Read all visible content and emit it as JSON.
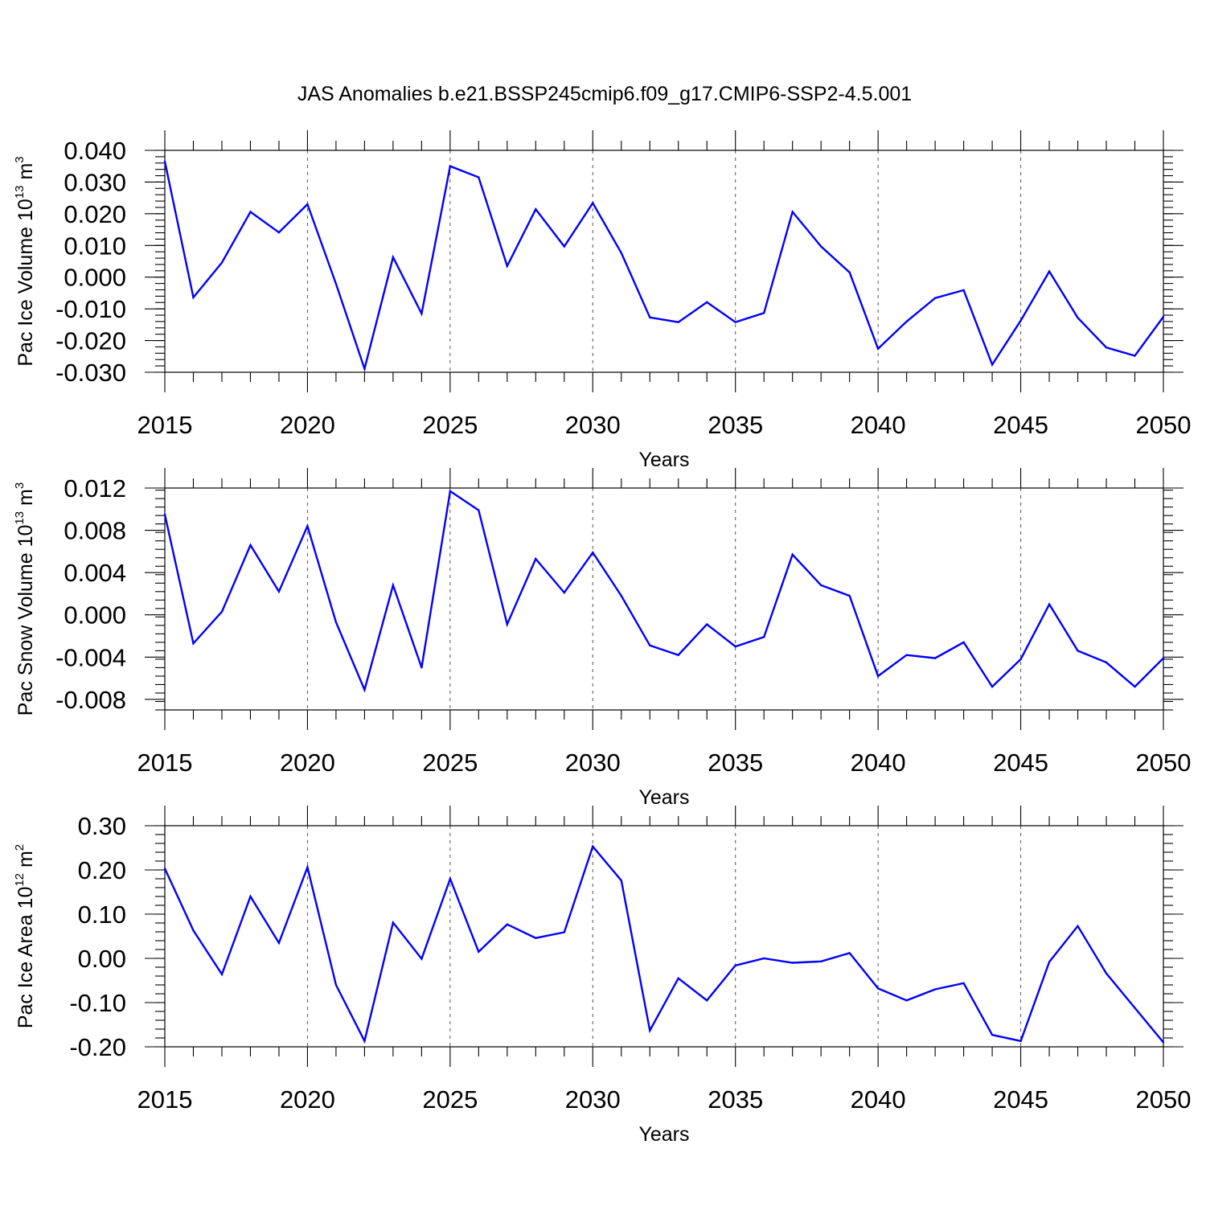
{
  "title": "JAS Anomalies b.e21.BSSP245cmip6.f09_g17.CMIP6-SSP2-4.5.001",
  "line_color": "#0000ff",
  "chart_data": [
    {
      "type": "line",
      "ylabel": {
        "text": "Pac Ice Volume 10",
        "exponent": "13",
        "unit": " m",
        "unit_exponent": "3"
      },
      "xlabel": "Years",
      "xlim": [
        2015,
        2050
      ],
      "ylim": [
        -0.03,
        0.04
      ],
      "x_ticks": [
        2015,
        2020,
        2025,
        2030,
        2035,
        2040,
        2045,
        2050
      ],
      "y_ticks": [
        {
          "value": 0.04,
          "label": "0.040"
        },
        {
          "value": 0.03,
          "label": "0.030"
        },
        {
          "value": 0.02,
          "label": "0.020"
        },
        {
          "value": 0.01,
          "label": "0.010"
        },
        {
          "value": 0.0,
          "label": "0.000"
        },
        {
          "value": -0.01,
          "label": "-0.010"
        },
        {
          "value": -0.02,
          "label": "-0.020"
        },
        {
          "value": -0.03,
          "label": "-0.030"
        }
      ],
      "y_minor_step": 0.002,
      "x": [
        2015,
        2016,
        2017,
        2018,
        2019,
        2020,
        2021,
        2022,
        2023,
        2024,
        2025,
        2026,
        2027,
        2028,
        2029,
        2030,
        2031,
        2032,
        2033,
        2034,
        2035,
        2036,
        2037,
        2038,
        2039,
        2040,
        2041,
        2042,
        2043,
        2044,
        2045,
        2046,
        2047,
        2048,
        2049,
        2050
      ],
      "values": [
        0.0365,
        -0.0064,
        0.0046,
        0.0206,
        0.0141,
        0.023,
        -0.0021,
        -0.0289,
        0.0063,
        -0.0115,
        0.035,
        0.0315,
        0.0035,
        0.0214,
        0.0097,
        0.0234,
        0.0076,
        -0.0127,
        -0.0142,
        -0.0079,
        -0.0142,
        -0.0113,
        0.0206,
        0.0097,
        0.0015,
        -0.0226,
        -0.014,
        -0.0066,
        -0.0041,
        -0.0276,
        -0.0137,
        0.0018,
        -0.0128,
        -0.0222,
        -0.0248,
        -0.0125
      ]
    },
    {
      "type": "line",
      "ylabel": {
        "text": "Pac Snow Volume 10",
        "exponent": "13",
        "unit": " m",
        "unit_exponent": "3"
      },
      "xlabel": "Years",
      "xlim": [
        2015,
        2050
      ],
      "ylim": [
        -0.009,
        0.012
      ],
      "x_ticks": [
        2015,
        2020,
        2025,
        2030,
        2035,
        2040,
        2045,
        2050
      ],
      "y_ticks": [
        {
          "value": 0.012,
          "label": "0.012"
        },
        {
          "value": 0.008,
          "label": "0.008"
        },
        {
          "value": 0.004,
          "label": "0.004"
        },
        {
          "value": 0.0,
          "label": "0.000"
        },
        {
          "value": -0.004,
          "label": "-0.004"
        },
        {
          "value": -0.008,
          "label": "-0.008"
        }
      ],
      "y_minor_step": 0.0008,
      "x": [
        2015,
        2016,
        2017,
        2018,
        2019,
        2020,
        2021,
        2022,
        2023,
        2024,
        2025,
        2026,
        2027,
        2028,
        2029,
        2030,
        2031,
        2032,
        2033,
        2034,
        2035,
        2036,
        2037,
        2038,
        2039,
        2040,
        2041,
        2042,
        2043,
        2044,
        2045,
        2046,
        2047,
        2048,
        2049,
        2050
      ],
      "values": [
        0.0095,
        -0.0027,
        0.0003,
        0.0066,
        0.0022,
        0.0084,
        -0.0007,
        -0.0071,
        0.0028,
        -0.005,
        0.0117,
        0.0099,
        -0.0009,
        0.0053,
        0.0021,
        0.0059,
        0.0018,
        -0.0029,
        -0.0038,
        -0.0009,
        -0.003,
        -0.0021,
        0.0057,
        0.0028,
        0.0018,
        -0.0058,
        -0.0038,
        -0.0041,
        -0.0026,
        -0.0068,
        -0.0042,
        0.001,
        -0.0034,
        -0.0045,
        -0.0068,
        -0.0041
      ]
    },
    {
      "type": "line",
      "ylabel": {
        "text": "Pac Ice Area 10",
        "exponent": "12",
        "unit": " m",
        "unit_exponent": "2"
      },
      "xlabel": "Years",
      "xlim": [
        2015,
        2050
      ],
      "ylim": [
        -0.2,
        0.3
      ],
      "x_ticks": [
        2015,
        2020,
        2025,
        2030,
        2035,
        2040,
        2045,
        2050
      ],
      "y_ticks": [
        {
          "value": 0.3,
          "label": "0.30"
        },
        {
          "value": 0.2,
          "label": "0.20"
        },
        {
          "value": 0.1,
          "label": "0.10"
        },
        {
          "value": 0.0,
          "label": "0.00"
        },
        {
          "value": -0.1,
          "label": "-0.10"
        },
        {
          "value": -0.2,
          "label": "-0.20"
        }
      ],
      "y_minor_step": 0.02,
      "x": [
        2015,
        2016,
        2017,
        2018,
        2019,
        2020,
        2021,
        2022,
        2023,
        2024,
        2025,
        2026,
        2027,
        2028,
        2029,
        2030,
        2031,
        2032,
        2033,
        2034,
        2035,
        2036,
        2037,
        2038,
        2039,
        2040,
        2041,
        2042,
        2043,
        2044,
        2045,
        2046,
        2047,
        2048,
        2049,
        2050
      ],
      "values": [
        0.203,
        0.063,
        -0.036,
        0.14,
        0.035,
        0.206,
        -0.06,
        -0.187,
        0.081,
        -0.001,
        0.18,
        0.015,
        0.077,
        0.046,
        0.059,
        0.253,
        0.176,
        -0.163,
        -0.045,
        -0.095,
        -0.016,
        0.0,
        -0.01,
        -0.007,
        0.012,
        -0.068,
        -0.095,
        -0.07,
        -0.056,
        -0.173,
        -0.187,
        -0.008,
        0.073,
        -0.034,
        -0.112,
        -0.19
      ]
    }
  ]
}
